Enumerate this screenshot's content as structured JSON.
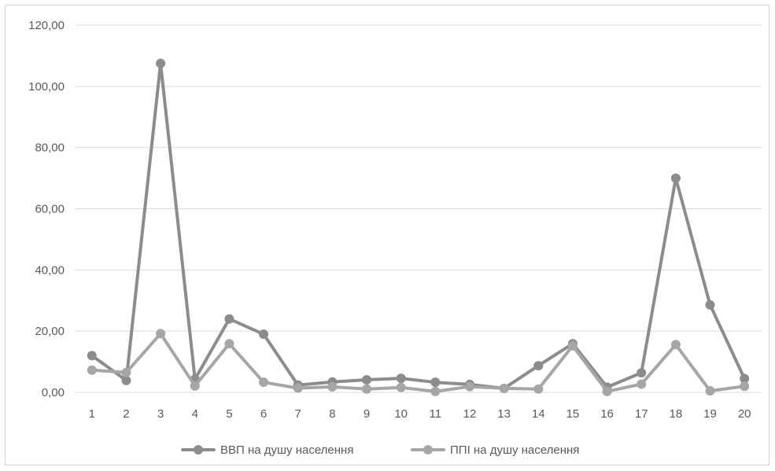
{
  "chart_data": {
    "type": "line",
    "title": "",
    "xlabel": "",
    "ylabel": "",
    "categories": [
      "1",
      "2",
      "3",
      "4",
      "5",
      "6",
      "7",
      "8",
      "9",
      "10",
      "11",
      "12",
      "13",
      "14",
      "15",
      "16",
      "17",
      "18",
      "19",
      "20"
    ],
    "ylim": [
      0,
      120
    ],
    "yticks": [
      "0,00",
      "20,00",
      "40,00",
      "60,00",
      "80,00",
      "100,00",
      "120,00"
    ],
    "grid": true,
    "legend": "bottom",
    "series": [
      {
        "name": "ВВП на душу населення",
        "color": "#8c8c8c",
        "values": [
          12.0,
          3.9,
          107.5,
          4.3,
          24.0,
          19.0,
          2.4,
          3.4,
          4.1,
          4.6,
          3.3,
          2.6,
          1.3,
          8.7,
          15.9,
          1.7,
          6.4,
          70.0,
          28.6,
          4.5
        ]
      },
      {
        "name": "ППІ на душу населення",
        "color": "#a6a6a6",
        "values": [
          7.3,
          6.5,
          19.2,
          2.1,
          15.9,
          3.3,
          1.4,
          1.8,
          1.1,
          1.6,
          0.3,
          1.9,
          1.3,
          1.1,
          15.2,
          0.3,
          2.7,
          15.6,
          0.5,
          2.0
        ]
      }
    ]
  }
}
